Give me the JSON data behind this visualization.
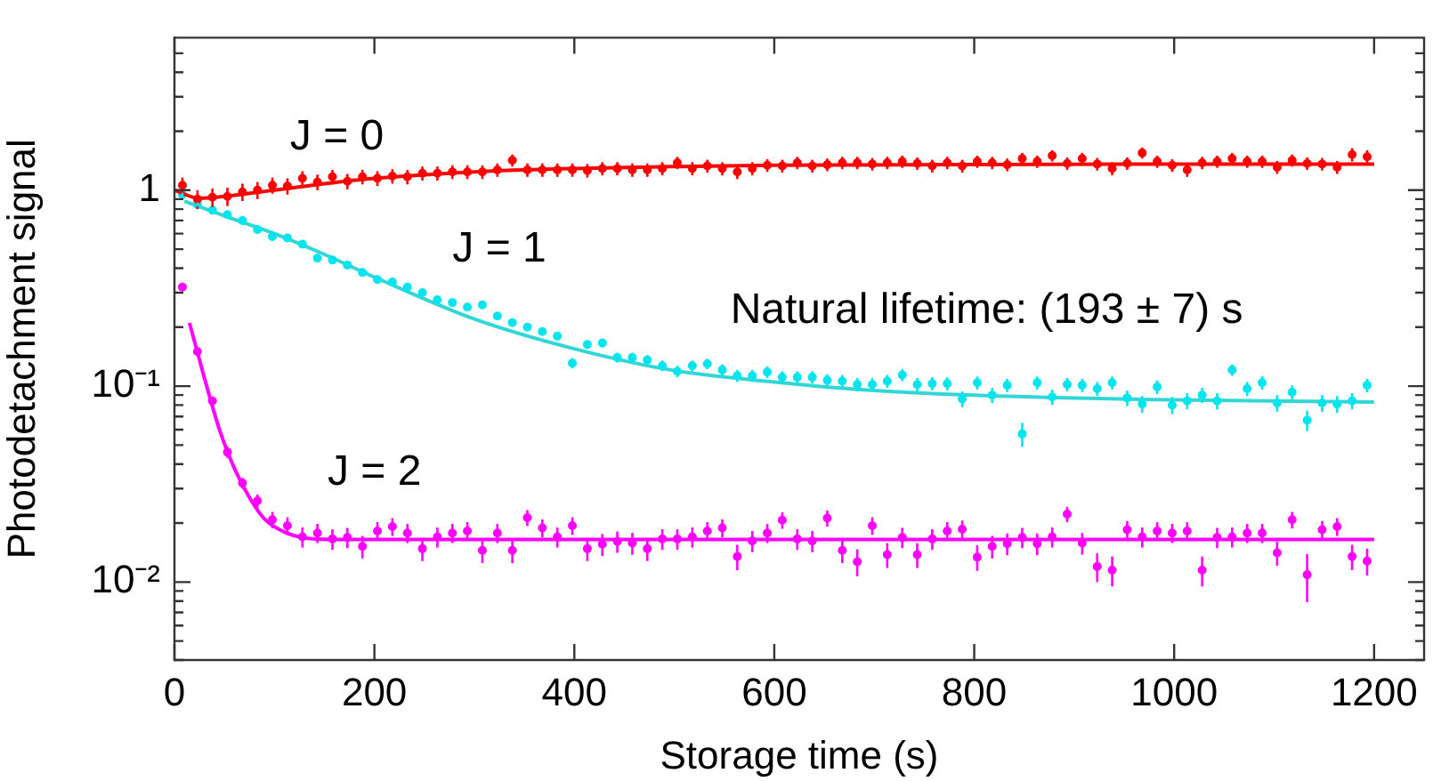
{
  "chart_data": {
    "type": "scatter",
    "xlabel": "Storage time (s)",
    "ylabel": "Photodetachment signal",
    "log": "y",
    "grid": false,
    "legend": false,
    "xlim": [
      0,
      1250
    ],
    "xticks": [
      0,
      200,
      400,
      600,
      800,
      1000,
      1200
    ],
    "ylim": [
      0.004,
      6
    ],
    "yticks": [
      {
        "value": 0.004,
        "label": null
      },
      {
        "value": 0.005,
        "label": null
      },
      {
        "value": 0.006,
        "label": null
      },
      {
        "value": 0.007,
        "label": null
      },
      {
        "value": 0.008,
        "label": null
      },
      {
        "value": 0.009,
        "label": null
      },
      {
        "value": 0.01,
        "label": "10⁻²"
      },
      {
        "value": 0.02,
        "label": null
      },
      {
        "value": 0.03,
        "label": null
      },
      {
        "value": 0.04,
        "label": null
      },
      {
        "value": 0.05,
        "label": null
      },
      {
        "value": 0.06,
        "label": null
      },
      {
        "value": 0.07,
        "label": null
      },
      {
        "value": 0.08,
        "label": null
      },
      {
        "value": 0.09,
        "label": null
      },
      {
        "value": 0.1,
        "label": "10⁻¹"
      },
      {
        "value": 0.2,
        "label": null
      },
      {
        "value": 0.3,
        "label": null
      },
      {
        "value": 0.4,
        "label": null
      },
      {
        "value": 0.5,
        "label": null
      },
      {
        "value": 0.6,
        "label": null
      },
      {
        "value": 0.7,
        "label": null
      },
      {
        "value": 0.8,
        "label": null
      },
      {
        "value": 0.9,
        "label": null
      },
      {
        "value": 1,
        "label": "1"
      },
      {
        "value": 2,
        "label": null
      },
      {
        "value": 3,
        "label": null
      },
      {
        "value": 4,
        "label": null
      },
      {
        "value": 5,
        "label": null
      }
    ],
    "annotations": [
      "Natural lifetime: (193 ± 7) s"
    ],
    "x": [
      8,
      23,
      38,
      53,
      68,
      83,
      98,
      113,
      128,
      143,
      158,
      173,
      188,
      203,
      218,
      233,
      248,
      263,
      278,
      293,
      308,
      323,
      338,
      353,
      368,
      383,
      398,
      413,
      428,
      443,
      458,
      473,
      488,
      503,
      518,
      533,
      548,
      563,
      578,
      593,
      608,
      623,
      638,
      653,
      668,
      683,
      698,
      713,
      728,
      743,
      758,
      773,
      788,
      803,
      818,
      833,
      848,
      863,
      878,
      893,
      908,
      923,
      938,
      953,
      968,
      983,
      998,
      1013,
      1028,
      1043,
      1058,
      1073,
      1088,
      1103,
      1118,
      1133,
      1148,
      1163,
      1178,
      1193
    ],
    "series": [
      {
        "name": "J = 0",
        "marker": "circle",
        "color": "#ff0000",
        "values": [
          1.06,
          0.9,
          0.92,
          0.93,
          0.98,
          1.0,
          1.06,
          1.05,
          1.15,
          1.1,
          1.17,
          1.11,
          1.17,
          1.15,
          1.18,
          1.17,
          1.22,
          1.22,
          1.24,
          1.24,
          1.24,
          1.27,
          1.42,
          1.27,
          1.27,
          1.27,
          1.27,
          1.26,
          1.29,
          1.29,
          1.27,
          1.27,
          1.29,
          1.38,
          1.29,
          1.33,
          1.29,
          1.24,
          1.29,
          1.34,
          1.33,
          1.38,
          1.33,
          1.35,
          1.38,
          1.38,
          1.36,
          1.38,
          1.4,
          1.37,
          1.33,
          1.38,
          1.33,
          1.4,
          1.38,
          1.35,
          1.45,
          1.4,
          1.5,
          1.37,
          1.45,
          1.36,
          1.29,
          1.37,
          1.55,
          1.4,
          1.34,
          1.27,
          1.38,
          1.4,
          1.45,
          1.4,
          1.4,
          1.31,
          1.42,
          1.37,
          1.36,
          1.31,
          1.52,
          1.48
        ],
        "errors": [
          0.1,
          0.1,
          0.1,
          0.1,
          0.1,
          0.1,
          0.1,
          0.1,
          0.1,
          0.1,
          0.1,
          0.1,
          0.1,
          0.1,
          0.1,
          0.1,
          0.1,
          0.1,
          0.1,
          0.1,
          0.1,
          0.1,
          0.1,
          0.1,
          0.1,
          0.1,
          0.1,
          0.1,
          0.1,
          0.1,
          0.1,
          0.1,
          0.1,
          0.1,
          0.1,
          0.1,
          0.1,
          0.1,
          0.1,
          0.1,
          0.1,
          0.1,
          0.1,
          0.1,
          0.1,
          0.1,
          0.1,
          0.1,
          0.1,
          0.1,
          0.1,
          0.1,
          0.1,
          0.1,
          0.1,
          0.1,
          0.1,
          0.1,
          0.1,
          0.1,
          0.1,
          0.1,
          0.1,
          0.1,
          0.1,
          0.1,
          0.1,
          0.1,
          0.1,
          0.1,
          0.1,
          0.1,
          0.1,
          0.1,
          0.1,
          0.1,
          0.1,
          0.1,
          0.12,
          0.12
        ]
      },
      {
        "type": "line",
        "marker": "none",
        "color": "#ff0000",
        "x": [
          0,
          25,
          50,
          100,
          150,
          200,
          300,
          400,
          500,
          600,
          800,
          1000,
          1200
        ],
        "values": [
          1.0,
          0.91,
          0.93,
          1.0,
          1.08,
          1.15,
          1.24,
          1.29,
          1.32,
          1.34,
          1.35,
          1.36,
          1.36
        ]
      },
      {
        "name": "J = 1",
        "marker": "circle",
        "color": "#00e5ee",
        "values": [
          0.95,
          0.845,
          0.79,
          0.75,
          0.7,
          0.63,
          0.58,
          0.57,
          0.53,
          0.45,
          0.44,
          0.415,
          0.38,
          0.35,
          0.34,
          0.32,
          0.3,
          0.276,
          0.267,
          0.253,
          0.26,
          0.228,
          0.211,
          0.2,
          0.19,
          0.18,
          0.131,
          0.163,
          0.166,
          0.14,
          0.14,
          0.136,
          0.127,
          0.119,
          0.127,
          0.13,
          0.121,
          0.113,
          0.113,
          0.118,
          0.111,
          0.111,
          0.111,
          0.107,
          0.106,
          0.102,
          0.102,
          0.106,
          0.114,
          0.102,
          0.103,
          0.103,
          0.086,
          0.104,
          0.09,
          0.101,
          0.057,
          0.104,
          0.088,
          0.102,
          0.101,
          0.097,
          0.104,
          0.087,
          0.081,
          0.099,
          0.08,
          0.084,
          0.09,
          0.084,
          0.121,
          0.097,
          0.104,
          0.082,
          0.093,
          0.067,
          0.082,
          0.081,
          0.084,
          0.101
        ],
        "errors": [
          0.02,
          0.02,
          0.02,
          0.02,
          0.02,
          0.02,
          0.02,
          0.015,
          0.015,
          0.015,
          0.015,
          0.012,
          0.012,
          0.012,
          0.012,
          0.01,
          0.01,
          0.01,
          0.01,
          0.01,
          0.01,
          0.008,
          0.008,
          0.008,
          0.008,
          0.008,
          0.008,
          0.008,
          0.008,
          0.008,
          0.008,
          0.008,
          0.008,
          0.008,
          0.008,
          0.008,
          0.008,
          0.008,
          0.008,
          0.008,
          0.008,
          0.008,
          0.008,
          0.008,
          0.008,
          0.008,
          0.008,
          0.008,
          0.008,
          0.008,
          0.008,
          0.008,
          0.008,
          0.008,
          0.008,
          0.008,
          0.008,
          0.008,
          0.008,
          0.008,
          0.008,
          0.008,
          0.008,
          0.008,
          0.008,
          0.008,
          0.008,
          0.008,
          0.008,
          0.008,
          0.008,
          0.008,
          0.008,
          0.008,
          0.008,
          0.008,
          0.008,
          0.008,
          0.008,
          0.008
        ]
      },
      {
        "type": "line",
        "marker": "none",
        "color": "#33d6d6",
        "x": [
          10,
          50,
          100,
          150,
          200,
          300,
          400,
          500,
          600,
          700,
          800,
          1000,
          1200
        ],
        "values": [
          0.88,
          0.74,
          0.6,
          0.47,
          0.36,
          0.22,
          0.155,
          0.12,
          0.105,
          0.095,
          0.09,
          0.085,
          0.083
        ]
      },
      {
        "name": "J = 2",
        "marker": "circle",
        "color": "#ff00ff",
        "values": [
          0.32,
          0.15,
          0.084,
          0.046,
          0.032,
          0.026,
          0.0208,
          0.0194,
          0.017,
          0.0178,
          0.0166,
          0.0169,
          0.0152,
          0.0182,
          0.0192,
          0.0178,
          0.0148,
          0.017,
          0.0178,
          0.0182,
          0.0145,
          0.0178,
          0.0145,
          0.0213,
          0.0189,
          0.017,
          0.0194,
          0.0148,
          0.0156,
          0.0161,
          0.0158,
          0.0148,
          0.0166,
          0.0166,
          0.017,
          0.0182,
          0.0189,
          0.0135,
          0.0162,
          0.0178,
          0.0207,
          0.0166,
          0.0162,
          0.0212,
          0.0145,
          0.0127,
          0.0194,
          0.0138,
          0.0169,
          0.0138,
          0.0166,
          0.0182,
          0.0186,
          0.0134,
          0.0152,
          0.0157,
          0.0169,
          0.0157,
          0.017,
          0.0222,
          0.0158,
          0.012,
          0.0115,
          0.0185,
          0.017,
          0.0182,
          0.0178,
          0.0182,
          0.0115,
          0.0169,
          0.017,
          0.0178,
          0.0178,
          0.0141,
          0.0208,
          0.0109,
          0.0185,
          0.0192,
          0.0135,
          0.0128
        ],
        "errors": [
          0.01,
          0.008,
          0.004,
          0.003,
          0.002,
          0.002,
          0.002,
          0.002,
          0.002,
          0.002,
          0.002,
          0.002,
          0.002,
          0.002,
          0.002,
          0.002,
          0.002,
          0.002,
          0.002,
          0.002,
          0.002,
          0.002,
          0.002,
          0.002,
          0.002,
          0.002,
          0.002,
          0.002,
          0.002,
          0.002,
          0.002,
          0.002,
          0.002,
          0.002,
          0.002,
          0.002,
          0.002,
          0.002,
          0.002,
          0.002,
          0.002,
          0.002,
          0.002,
          0.002,
          0.002,
          0.002,
          0.002,
          0.002,
          0.002,
          0.002,
          0.002,
          0.002,
          0.002,
          0.002,
          0.002,
          0.002,
          0.002,
          0.002,
          0.002,
          0.002,
          0.002,
          0.002,
          0.002,
          0.002,
          0.002,
          0.002,
          0.002,
          0.002,
          0.002,
          0.002,
          0.002,
          0.002,
          0.002,
          0.002,
          0.002,
          0.003,
          0.002,
          0.002,
          0.002,
          0.002
        ]
      },
      {
        "type": "line",
        "marker": "none",
        "color": "#ff00ff",
        "x": [
          15,
          30,
          45,
          60,
          75,
          90,
          110,
          130,
          160,
          1200
        ],
        "values": [
          0.21,
          0.11,
          0.06,
          0.038,
          0.027,
          0.021,
          0.018,
          0.0168,
          0.0165,
          0.0165
        ]
      }
    ]
  }
}
